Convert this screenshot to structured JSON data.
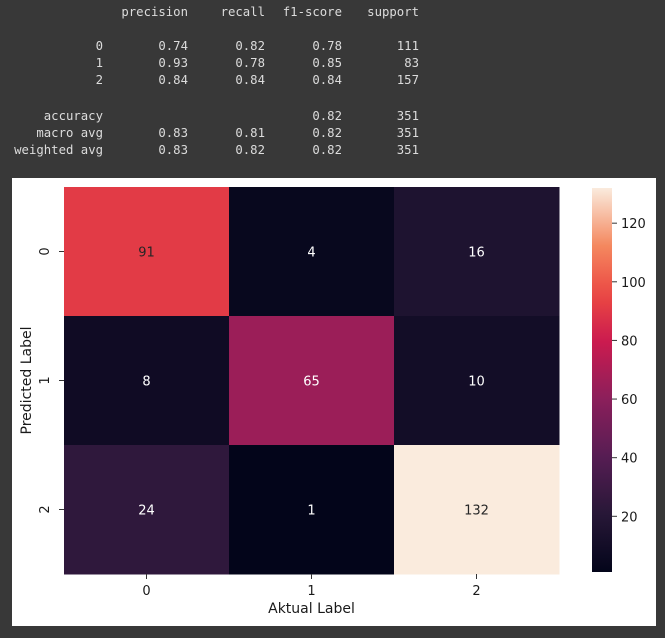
{
  "classification_report": {
    "headers": [
      "precision",
      "recall",
      "f1-score",
      "support"
    ],
    "rows": [
      {
        "label": "0",
        "values": [
          "0.74",
          "0.82",
          "0.78",
          "111"
        ]
      },
      {
        "label": "1",
        "values": [
          "0.93",
          "0.78",
          "0.85",
          "83"
        ]
      },
      {
        "label": "2",
        "values": [
          "0.84",
          "0.84",
          "0.84",
          "157"
        ]
      },
      {
        "label": "accuracy",
        "values": [
          "",
          "",
          "0.82",
          "351"
        ]
      },
      {
        "label": "macro avg",
        "values": [
          "0.83",
          "0.81",
          "0.82",
          "351"
        ]
      },
      {
        "label": "weighted avg",
        "values": [
          "0.83",
          "0.82",
          "0.82",
          "351"
        ]
      }
    ]
  },
  "chart_data": {
    "type": "heatmap",
    "xlabel": "Aktual Label",
    "ylabel": "Predicted Label",
    "x_categories": [
      "0",
      "1",
      "2"
    ],
    "y_categories": [
      "0",
      "1",
      "2"
    ],
    "values": [
      [
        91,
        4,
        16
      ],
      [
        8,
        65,
        10
      ],
      [
        24,
        1,
        132
      ]
    ],
    "colorbar": {
      "min": 1,
      "max": 132,
      "ticks": [
        20,
        40,
        60,
        80,
        100,
        120
      ]
    },
    "colormap": "rocket"
  }
}
